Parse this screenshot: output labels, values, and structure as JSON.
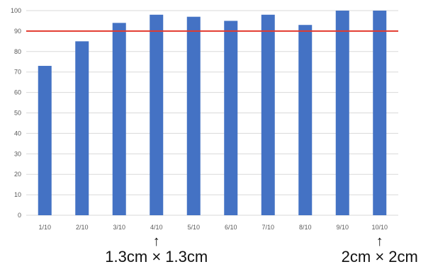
{
  "chart_data": {
    "type": "bar",
    "title": "",
    "xlabel": "",
    "ylabel": "",
    "categories": [
      "1/10",
      "2/10",
      "3/10",
      "4/10",
      "5/10",
      "6/10",
      "7/10",
      "8/10",
      "9/10",
      "10/10"
    ],
    "series": [
      {
        "values": [
          73,
          85,
          94,
          98,
          97,
          95,
          98,
          93,
          100,
          100
        ]
      }
    ],
    "ylim": [
      0,
      100
    ],
    "yticks": [
      0,
      10,
      20,
      30,
      40,
      50,
      60,
      70,
      80,
      90,
      100
    ],
    "grid": true,
    "legend": "none",
    "reference_line": {
      "value": 90,
      "color": "#e23a2e"
    },
    "bar_color": "#4472c4",
    "grid_color": "#d9d9d9",
    "annotations": [
      {
        "category": "4/10",
        "arrow": "↑",
        "text": "1.3cm × 1.3cm"
      },
      {
        "category": "10/10",
        "arrow": "↑",
        "text": "2cm × 2cm"
      }
    ]
  }
}
